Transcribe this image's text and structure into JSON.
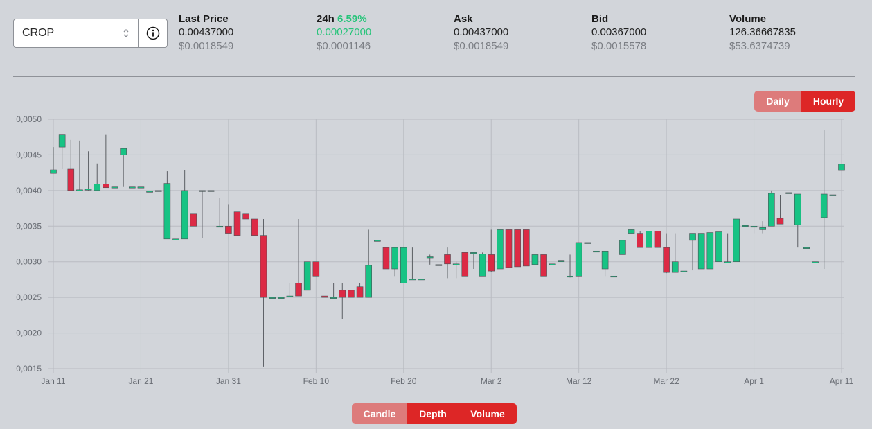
{
  "pair_selector": {
    "value": "CROP"
  },
  "stats": {
    "last_price": {
      "label": "Last Price",
      "value": "0.00437000",
      "usd": "$0.0018549"
    },
    "change_24h": {
      "label": "24h",
      "percent": "6.59%",
      "value": "0.00027000",
      "usd": "$0.0001146"
    },
    "ask": {
      "label": "Ask",
      "value": "0.00437000",
      "usd": "$0.0018549"
    },
    "bid": {
      "label": "Bid",
      "value": "0.00367000",
      "usd": "$0.0015578"
    },
    "volume": {
      "label": "Volume",
      "value": "126.36667835",
      "usd": "$53.6374739"
    }
  },
  "range_toggle": {
    "daily": "Daily",
    "hourly": "Hourly",
    "active": "hourly"
  },
  "view_toggle": {
    "candle": "Candle",
    "depth": "Depth",
    "volume": "Volume",
    "active": "candle"
  },
  "colors": {
    "up": "#17c384",
    "down": "#dc2a45",
    "grid": "#b9bcc2",
    "axis_text": "#686c73",
    "positive_text": "#27c47a"
  },
  "chart_data": {
    "type": "candlestick",
    "title": "",
    "xlabel": "",
    "ylabel": "",
    "ylim": [
      0.0015,
      0.005
    ],
    "y_ticks": [
      "0,0015",
      "0,0020",
      "0,0025",
      "0,0030",
      "0,0035",
      "0,0040",
      "0,0045",
      "0,0050"
    ],
    "y_tick_values": [
      0.0015,
      0.002,
      0.0025,
      0.003,
      0.0035,
      0.004,
      0.0045,
      0.005
    ],
    "xlim": [
      "2021-01-11",
      "2021-04-11"
    ],
    "x_ticks": [
      "Jan 11",
      "Jan 21",
      "Jan 31",
      "Feb 10",
      "Feb 20",
      "Mar 2",
      "Mar 12",
      "Mar 22",
      "Apr 1",
      "Apr 11"
    ],
    "x_tick_dates": [
      "2021-01-11",
      "2021-01-21",
      "2021-01-31",
      "2021-02-10",
      "2021-02-20",
      "2021-03-02",
      "2021-03-12",
      "2021-03-22",
      "2021-04-01",
      "2021-04-11"
    ],
    "grid": true,
    "candles": [
      {
        "date": "2021-01-11",
        "open": 0.00424,
        "high": 0.00461,
        "low": 0.00424,
        "close": 0.00429
      },
      {
        "date": "2021-01-12",
        "open": 0.00461,
        "high": 0.00478,
        "low": 0.0043,
        "close": 0.00478
      },
      {
        "date": "2021-01-13",
        "open": 0.0043,
        "high": 0.00471,
        "low": 0.004,
        "close": 0.004
      },
      {
        "date": "2021-01-14",
        "open": 0.004,
        "high": 0.0047,
        "low": 0.004,
        "close": 0.00401
      },
      {
        "date": "2021-01-15",
        "open": 0.00401,
        "high": 0.00455,
        "low": 0.004,
        "close": 0.00402
      },
      {
        "date": "2021-01-16",
        "open": 0.004,
        "high": 0.00438,
        "low": 0.004,
        "close": 0.00409
      },
      {
        "date": "2021-01-17",
        "open": 0.00409,
        "high": 0.00478,
        "low": 0.00404,
        "close": 0.00404
      },
      {
        "date": "2021-01-18",
        "open": 0.00405,
        "high": 0.00405,
        "low": 0.00405,
        "close": 0.00405
      },
      {
        "date": "2021-01-19",
        "open": 0.0045,
        "high": 0.0046,
        "low": 0.00405,
        "close": 0.00459
      },
      {
        "date": "2021-01-20",
        "open": 0.00405,
        "high": 0.00405,
        "low": 0.00405,
        "close": 0.00405
      },
      {
        "date": "2021-01-21",
        "open": 0.00405,
        "high": 0.00405,
        "low": 0.00405,
        "close": 0.00405
      },
      {
        "date": "2021-01-22",
        "open": 0.00399,
        "high": 0.00399,
        "low": 0.00399,
        "close": 0.00399
      },
      {
        "date": "2021-01-23",
        "open": 0.004,
        "high": 0.004,
        "low": 0.004,
        "close": 0.004
      },
      {
        "date": "2021-01-24",
        "open": 0.00332,
        "high": 0.00427,
        "low": 0.00332,
        "close": 0.0041
      },
      {
        "date": "2021-01-25",
        "open": 0.00332,
        "high": 0.00332,
        "low": 0.00332,
        "close": 0.00332
      },
      {
        "date": "2021-01-26",
        "open": 0.00332,
        "high": 0.00429,
        "low": 0.00332,
        "close": 0.004
      },
      {
        "date": "2021-01-27",
        "open": 0.00367,
        "high": 0.00367,
        "low": 0.0035,
        "close": 0.0035
      },
      {
        "date": "2021-01-28",
        "open": 0.004,
        "high": 0.004,
        "low": 0.00333,
        "close": 0.004
      },
      {
        "date": "2021-01-29",
        "open": 0.004,
        "high": 0.004,
        "low": 0.004,
        "close": 0.004
      },
      {
        "date": "2021-01-30",
        "open": 0.0035,
        "high": 0.0039,
        "low": 0.0035,
        "close": 0.0035
      },
      {
        "date": "2021-01-31",
        "open": 0.0035,
        "high": 0.0038,
        "low": 0.0034,
        "close": 0.0034
      },
      {
        "date": "2021-02-01",
        "open": 0.0037,
        "high": 0.0037,
        "low": 0.00337,
        "close": 0.00337
      },
      {
        "date": "2021-02-02",
        "open": 0.00367,
        "high": 0.00367,
        "low": 0.0036,
        "close": 0.0036
      },
      {
        "date": "2021-02-03",
        "open": 0.0036,
        "high": 0.0036,
        "low": 0.00337,
        "close": 0.00337
      },
      {
        "date": "2021-02-04",
        "open": 0.00337,
        "high": 0.0036,
        "low": 0.00153,
        "close": 0.0025
      },
      {
        "date": "2021-02-05",
        "open": 0.0025,
        "high": 0.0025,
        "low": 0.0025,
        "close": 0.0025
      },
      {
        "date": "2021-02-06",
        "open": 0.0025,
        "high": 0.0025,
        "low": 0.0025,
        "close": 0.0025
      },
      {
        "date": "2021-02-07",
        "open": 0.00252,
        "high": 0.0027,
        "low": 0.00252,
        "close": 0.00252
      },
      {
        "date": "2021-02-08",
        "open": 0.0027,
        "high": 0.0036,
        "low": 0.00252,
        "close": 0.00252
      },
      {
        "date": "2021-02-09",
        "open": 0.0026,
        "high": 0.003,
        "low": 0.0026,
        "close": 0.003
      },
      {
        "date": "2021-02-10",
        "open": 0.003,
        "high": 0.003,
        "low": 0.0028,
        "close": 0.0028
      },
      {
        "date": "2021-02-11",
        "open": 0.00252,
        "high": 0.00252,
        "low": 0.0025,
        "close": 0.0025
      },
      {
        "date": "2021-02-12",
        "open": 0.0025,
        "high": 0.0027,
        "low": 0.0025,
        "close": 0.0025
      },
      {
        "date": "2021-02-13",
        "open": 0.0026,
        "high": 0.0027,
        "low": 0.0022,
        "close": 0.0025
      },
      {
        "date": "2021-02-14",
        "open": 0.0026,
        "high": 0.0026,
        "low": 0.0025,
        "close": 0.0025
      },
      {
        "date": "2021-02-15",
        "open": 0.00265,
        "high": 0.0027,
        "low": 0.0025,
        "close": 0.0025
      },
      {
        "date": "2021-02-16",
        "open": 0.0025,
        "high": 0.00345,
        "low": 0.0025,
        "close": 0.00295
      },
      {
        "date": "2021-02-17",
        "open": 0.0033,
        "high": 0.0033,
        "low": 0.0033,
        "close": 0.0033
      },
      {
        "date": "2021-02-18",
        "open": 0.0032,
        "high": 0.00325,
        "low": 0.00252,
        "close": 0.0029
      },
      {
        "date": "2021-02-19",
        "open": 0.0029,
        "high": 0.0032,
        "low": 0.0028,
        "close": 0.0032
      },
      {
        "date": "2021-02-20",
        "open": 0.0027,
        "high": 0.0032,
        "low": 0.0027,
        "close": 0.0032
      },
      {
        "date": "2021-02-21",
        "open": 0.00276,
        "high": 0.0032,
        "low": 0.00276,
        "close": 0.00276
      },
      {
        "date": "2021-02-22",
        "open": 0.00276,
        "high": 0.00276,
        "low": 0.00276,
        "close": 0.00276
      },
      {
        "date": "2021-02-23",
        "open": 0.00307,
        "high": 0.0031,
        "low": 0.00296,
        "close": 0.00307
      },
      {
        "date": "2021-02-24",
        "open": 0.00296,
        "high": 0.00296,
        "low": 0.00296,
        "close": 0.00296
      },
      {
        "date": "2021-02-25",
        "open": 0.0031,
        "high": 0.0032,
        "low": 0.00277,
        "close": 0.00297
      },
      {
        "date": "2021-02-26",
        "open": 0.00297,
        "high": 0.003,
        "low": 0.00277,
        "close": 0.00297
      },
      {
        "date": "2021-02-27",
        "open": 0.00313,
        "high": 0.00313,
        "low": 0.0028,
        "close": 0.0028
      },
      {
        "date": "2021-02-28",
        "open": 0.00313,
        "high": 0.00313,
        "low": 0.0029,
        "close": 0.00313
      },
      {
        "date": "2021-03-01",
        "open": 0.0028,
        "high": 0.00313,
        "low": 0.0028,
        "close": 0.00311
      },
      {
        "date": "2021-03-02",
        "open": 0.0031,
        "high": 0.00345,
        "low": 0.00286,
        "close": 0.00287
      },
      {
        "date": "2021-03-03",
        "open": 0.0029,
        "high": 0.00345,
        "low": 0.0029,
        "close": 0.00345
      },
      {
        "date": "2021-03-04",
        "open": 0.00345,
        "high": 0.00345,
        "low": 0.00292,
        "close": 0.00292
      },
      {
        "date": "2021-03-05",
        "open": 0.00345,
        "high": 0.00345,
        "low": 0.00293,
        "close": 0.00293
      },
      {
        "date": "2021-03-06",
        "open": 0.00345,
        "high": 0.00345,
        "low": 0.00294,
        "close": 0.00294
      },
      {
        "date": "2021-03-07",
        "open": 0.00296,
        "high": 0.0031,
        "low": 0.00296,
        "close": 0.0031
      },
      {
        "date": "2021-03-08",
        "open": 0.0031,
        "high": 0.0031,
        "low": 0.0028,
        "close": 0.0028
      },
      {
        "date": "2021-03-09",
        "open": 0.00297,
        "high": 0.00297,
        "low": 0.00297,
        "close": 0.00297
      },
      {
        "date": "2021-03-10",
        "open": 0.003,
        "high": 0.003,
        "low": 0.003,
        "close": 0.00302
      },
      {
        "date": "2021-03-11",
        "open": 0.0028,
        "high": 0.0031,
        "low": 0.00278,
        "close": 0.0028
      },
      {
        "date": "2021-03-12",
        "open": 0.0028,
        "high": 0.00327,
        "low": 0.0028,
        "close": 0.00327
      },
      {
        "date": "2021-03-13",
        "open": 0.00327,
        "high": 0.00327,
        "low": 0.00327,
        "close": 0.00327
      },
      {
        "date": "2021-03-14",
        "open": 0.00315,
        "high": 0.00315,
        "low": 0.00315,
        "close": 0.00315
      },
      {
        "date": "2021-03-15",
        "open": 0.0029,
        "high": 0.00315,
        "low": 0.0028,
        "close": 0.00315
      },
      {
        "date": "2021-03-16",
        "open": 0.0028,
        "high": 0.0028,
        "low": 0.0028,
        "close": 0.0028
      },
      {
        "date": "2021-03-17",
        "open": 0.0031,
        "high": 0.0033,
        "low": 0.0031,
        "close": 0.0033
      },
      {
        "date": "2021-03-18",
        "open": 0.0034,
        "high": 0.00345,
        "low": 0.0034,
        "close": 0.00345
      },
      {
        "date": "2021-03-19",
        "open": 0.0034,
        "high": 0.00343,
        "low": 0.0032,
        "close": 0.0032
      },
      {
        "date": "2021-03-20",
        "open": 0.0032,
        "high": 0.00343,
        "low": 0.0032,
        "close": 0.00343
      },
      {
        "date": "2021-03-21",
        "open": 0.00343,
        "high": 0.00343,
        "low": 0.0032,
        "close": 0.0032
      },
      {
        "date": "2021-03-22",
        "open": 0.0032,
        "high": 0.0034,
        "low": 0.00284,
        "close": 0.00285
      },
      {
        "date": "2021-03-23",
        "open": 0.00285,
        "high": 0.0034,
        "low": 0.00285,
        "close": 0.003
      },
      {
        "date": "2021-03-24",
        "open": 0.00287,
        "high": 0.00287,
        "low": 0.00287,
        "close": 0.00287
      },
      {
        "date": "2021-03-25",
        "open": 0.0033,
        "high": 0.0034,
        "low": 0.00288,
        "close": 0.0034
      },
      {
        "date": "2021-03-26",
        "open": 0.0029,
        "high": 0.0034,
        "low": 0.0029,
        "close": 0.0034
      },
      {
        "date": "2021-03-27",
        "open": 0.0029,
        "high": 0.00341,
        "low": 0.0029,
        "close": 0.00341
      },
      {
        "date": "2021-03-28",
        "open": 0.003,
        "high": 0.00342,
        "low": 0.003,
        "close": 0.00342
      },
      {
        "date": "2021-03-29",
        "open": 0.003,
        "high": 0.0034,
        "low": 0.003,
        "close": 0.003
      },
      {
        "date": "2021-03-30",
        "open": 0.003,
        "high": 0.0036,
        "low": 0.003,
        "close": 0.0036
      },
      {
        "date": "2021-03-31",
        "open": 0.00351,
        "high": 0.00351,
        "low": 0.00351,
        "close": 0.00351
      },
      {
        "date": "2021-04-01",
        "open": 0.0035,
        "high": 0.0035,
        "low": 0.0034,
        "close": 0.0035
      },
      {
        "date": "2021-04-02",
        "open": 0.00345,
        "high": 0.00357,
        "low": 0.0034,
        "close": 0.00348
      },
      {
        "date": "2021-04-03",
        "open": 0.0035,
        "high": 0.004,
        "low": 0.0035,
        "close": 0.00396
      },
      {
        "date": "2021-04-04",
        "open": 0.00361,
        "high": 0.00394,
        "low": 0.00353,
        "close": 0.00353
      },
      {
        "date": "2021-04-05",
        "open": 0.00397,
        "high": 0.00397,
        "low": 0.00397,
        "close": 0.00397
      },
      {
        "date": "2021-04-06",
        "open": 0.00352,
        "high": 0.00395,
        "low": 0.0032,
        "close": 0.00395
      },
      {
        "date": "2021-04-07",
        "open": 0.0032,
        "high": 0.0032,
        "low": 0.0032,
        "close": 0.0032
      },
      {
        "date": "2021-04-08",
        "open": 0.003,
        "high": 0.003,
        "low": 0.003,
        "close": 0.003
      },
      {
        "date": "2021-04-09",
        "open": 0.00362,
        "high": 0.00485,
        "low": 0.0029,
        "close": 0.00395
      },
      {
        "date": "2021-04-10",
        "open": 0.00394,
        "high": 0.00394,
        "low": 0.00394,
        "close": 0.00394
      },
      {
        "date": "2021-04-11",
        "open": 0.00428,
        "high": 0.00437,
        "low": 0.00428,
        "close": 0.00437
      }
    ]
  }
}
